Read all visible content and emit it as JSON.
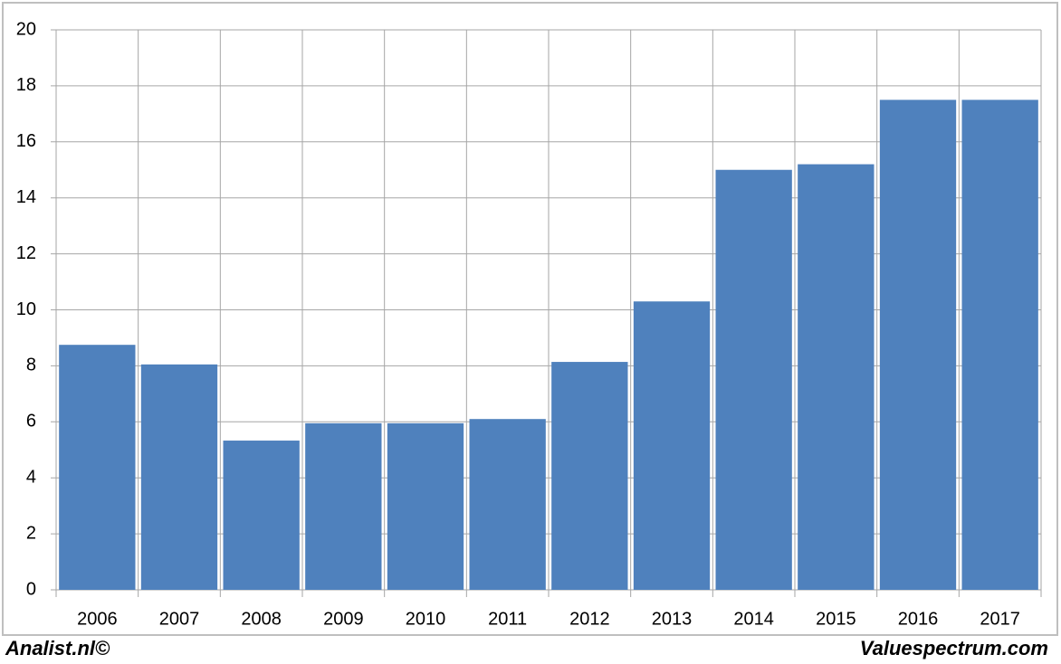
{
  "chart_data": {
    "type": "bar",
    "categories": [
      "2006",
      "2007",
      "2008",
      "2009",
      "2010",
      "2011",
      "2012",
      "2013",
      "2014",
      "2015",
      "2016",
      "2017"
    ],
    "values": [
      8.75,
      8.05,
      5.33,
      5.95,
      5.95,
      6.1,
      8.14,
      10.3,
      15,
      15.2,
      17.5,
      17.5
    ],
    "color": "#4f81bd",
    "ylim": [
      0,
      20
    ],
    "yticks": [
      0,
      2,
      4,
      6,
      8,
      10,
      12,
      14,
      16,
      18,
      20
    ],
    "grid": true
  },
  "footer": {
    "left": "Analist.nl©",
    "right": "Valuespectrum.com"
  }
}
